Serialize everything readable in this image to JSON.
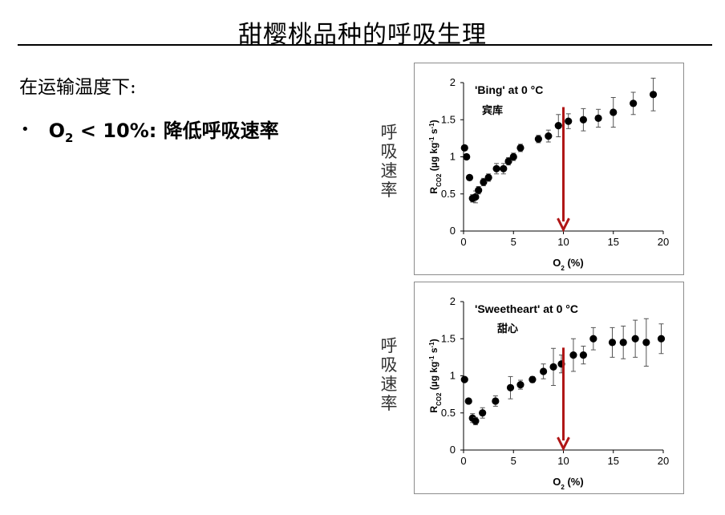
{
  "slide": {
    "title": "甜樱桃品种的呼吸生理",
    "subtitle": "在运输温度下:",
    "bullet": {
      "symbol": "•",
      "o_text": "O",
      "o_sub": "2",
      "rest": " < 10%: 降低呼吸速率"
    }
  },
  "side_labels": [
    [
      "呼",
      "吸",
      "速",
      "率"
    ],
    [
      "呼",
      "吸",
      "速",
      "率"
    ]
  ],
  "colors": {
    "marker": "#000000",
    "arrow": "#b01616",
    "frame": "#8c8c8c"
  },
  "chart_data": [
    {
      "type": "scatter",
      "title": "'Bing' at 0 °C",
      "annotation": "宾库",
      "ylabel_parts": [
        "R",
        "CO2",
        " (µg kg",
        "-1",
        " s",
        "-1",
        ")"
      ],
      "xlabel_parts": [
        "O",
        "2",
        " (%)"
      ],
      "xlim": [
        0,
        20
      ],
      "ylim": [
        0,
        2
      ],
      "xticks": [
        0,
        5,
        10,
        15,
        20
      ],
      "yticks": [
        0,
        0.5,
        1,
        1.5,
        2
      ],
      "arrow": {
        "x": 10,
        "y_from": 1.67,
        "y_to": 0.02
      },
      "series": [
        {
          "points": [
            [
              0.1,
              1.12,
              0
            ],
            [
              0.3,
              1.0,
              0
            ],
            [
              0.6,
              0.72,
              0
            ],
            [
              0.9,
              0.44,
              0.05
            ],
            [
              1.2,
              0.46,
              0.08
            ],
            [
              1.5,
              0.55,
              0.05
            ],
            [
              2.0,
              0.66,
              0.05
            ],
            [
              2.5,
              0.72,
              0.05
            ],
            [
              3.3,
              0.84,
              0.07
            ],
            [
              4.0,
              0.84,
              0.07
            ],
            [
              4.5,
              0.94,
              0.05
            ],
            [
              5.0,
              1.0,
              0.05
            ],
            [
              5.7,
              1.12,
              0.05
            ],
            [
              7.5,
              1.24,
              0.05
            ],
            [
              8.5,
              1.28,
              0.08
            ],
            [
              9.5,
              1.42,
              0.15
            ],
            [
              10.5,
              1.48,
              0.1
            ],
            [
              12.0,
              1.5,
              0.15
            ],
            [
              13.5,
              1.52,
              0.12
            ],
            [
              15.0,
              1.6,
              0.2
            ],
            [
              17.0,
              1.72,
              0.15
            ],
            [
              19.0,
              1.84,
              0.22
            ]
          ]
        }
      ]
    },
    {
      "type": "scatter",
      "title": "'Sweetheart' at 0 °C",
      "annotation": "甜心",
      "ylabel_parts": [
        "R",
        "CO2",
        " (µg kg",
        "-1",
        " s",
        "-1",
        ")"
      ],
      "xlabel_parts": [
        "O",
        "2",
        " (%)"
      ],
      "xlim": [
        0,
        20
      ],
      "ylim": [
        0,
        2
      ],
      "xticks": [
        0,
        5,
        10,
        15,
        20
      ],
      "yticks": [
        0,
        0.5,
        1,
        1.5,
        2
      ],
      "arrow": {
        "x": 10,
        "y_from": 1.38,
        "y_to": 0.02
      },
      "series": [
        {
          "points": [
            [
              0.1,
              0.95,
              0
            ],
            [
              0.5,
              0.66,
              0
            ],
            [
              0.9,
              0.43,
              0.06
            ],
            [
              1.2,
              0.39,
              0.05
            ],
            [
              1.9,
              0.5,
              0.07
            ],
            [
              3.2,
              0.66,
              0.07
            ],
            [
              4.7,
              0.84,
              0.15
            ],
            [
              5.7,
              0.88,
              0.06
            ],
            [
              6.9,
              0.95,
              0.04
            ],
            [
              8.0,
              1.06,
              0.1
            ],
            [
              9.0,
              1.12,
              0.25
            ],
            [
              9.8,
              1.16,
              0.12
            ],
            [
              11.0,
              1.28,
              0.22
            ],
            [
              12.0,
              1.28,
              0.12
            ],
            [
              13.0,
              1.5,
              0.15
            ],
            [
              14.9,
              1.45,
              0.2
            ],
            [
              16.0,
              1.45,
              0.22
            ],
            [
              17.2,
              1.5,
              0.25
            ],
            [
              18.3,
              1.45,
              0.32
            ],
            [
              19.8,
              1.5,
              0.2
            ]
          ]
        }
      ]
    }
  ]
}
